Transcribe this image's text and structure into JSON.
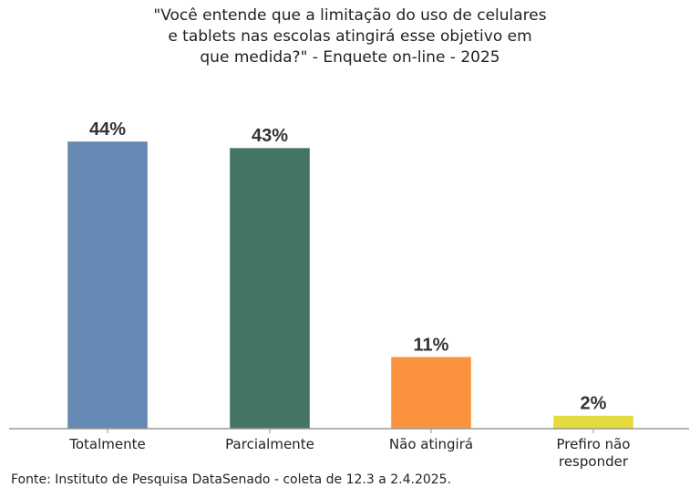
{
  "chart_data": {
    "type": "bar",
    "title_lines": [
      "\"Você entende que a limitação do uso de celulares",
      "e tablets nas escolas atingirá esse objetivo em",
      "que medida?\" - Enquete on-line - 2025"
    ],
    "categories": [
      [
        "Totalmente"
      ],
      [
        "Parcialmente"
      ],
      [
        "Não atingirá"
      ],
      [
        "Prefiro não",
        "responder"
      ]
    ],
    "values": [
      44,
      43,
      11,
      2
    ],
    "data_labels": [
      "44%",
      "43%",
      "11%",
      "2%"
    ],
    "colors": [
      "#6589b3",
      "#447563",
      "#fb923e",
      "#e5db3a"
    ],
    "unit": "%",
    "ylim": [
      0,
      44
    ],
    "grid": false,
    "legend": "none"
  },
  "source": "Fonte: Instituto de Pesquisa DataSenado - coleta de 12.3 a 2.4.2025."
}
